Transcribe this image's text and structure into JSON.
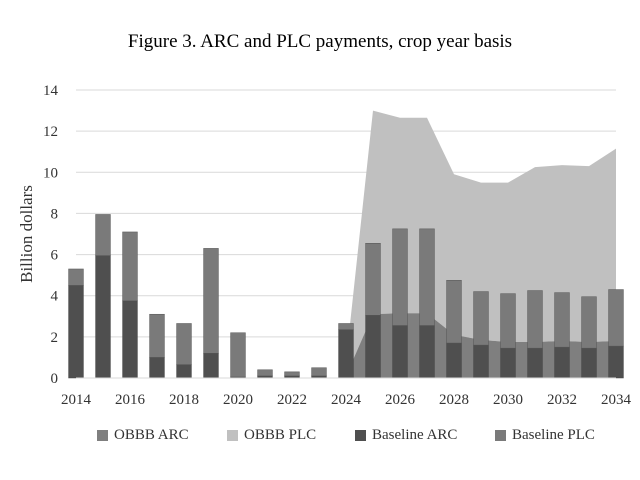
{
  "chart_data": {
    "type": "bar",
    "title": "Figure 3. ARC and PLC payments, crop year basis",
    "ylabel": "Billion dollars",
    "xlabel": "",
    "ylim": [
      0,
      14
    ],
    "yticks": [
      0,
      2,
      4,
      6,
      8,
      10,
      12,
      14
    ],
    "xtick_labels": [
      "2014",
      "2016",
      "2018",
      "2020",
      "2022",
      "2024",
      "2026",
      "2028",
      "2030",
      "2032",
      "2034"
    ],
    "grid": true,
    "legend_position": "bottom",
    "years": [
      2014,
      2015,
      2016,
      2017,
      2018,
      2019,
      2020,
      2021,
      2022,
      2023,
      2024,
      2025,
      2026,
      2027,
      2028,
      2029,
      2030,
      2031,
      2032,
      2033,
      2034
    ],
    "series": [
      {
        "name": "OBBB ARC",
        "kind": "area",
        "color": "#7f7f7f",
        "values": [
          null,
          null,
          null,
          null,
          null,
          null,
          null,
          null,
          null,
          null,
          0.1,
          3.1,
          3.15,
          3.15,
          2.1,
          1.85,
          1.75,
          1.75,
          1.8,
          1.75,
          1.8
        ]
      },
      {
        "name": "OBBB PLC",
        "kind": "area",
        "color": "#c0c0c0",
        "values": [
          null,
          null,
          null,
          null,
          null,
          null,
          null,
          null,
          null,
          null,
          0.7,
          9.9,
          9.5,
          9.5,
          7.8,
          7.65,
          7.75,
          8.5,
          8.55,
          8.55,
          9.35
        ]
      },
      {
        "name": "Baseline ARC",
        "kind": "bar",
        "color": "#4f4f4f",
        "values": [
          4.5,
          5.95,
          3.75,
          1.0,
          0.65,
          1.2,
          0.05,
          0.1,
          0.1,
          0.1,
          2.35,
          3.05,
          2.55,
          2.55,
          1.7,
          1.6,
          1.45,
          1.45,
          1.5,
          1.45,
          1.55
        ]
      },
      {
        "name": "Baseline PLC",
        "kind": "bar",
        "color": "#7a7a7a",
        "values": [
          0.8,
          2.0,
          3.35,
          2.1,
          2.0,
          5.1,
          2.15,
          0.3,
          0.2,
          0.4,
          0.3,
          3.5,
          4.7,
          4.7,
          3.05,
          2.6,
          2.65,
          2.8,
          2.65,
          2.5,
          2.75
        ]
      }
    ]
  }
}
